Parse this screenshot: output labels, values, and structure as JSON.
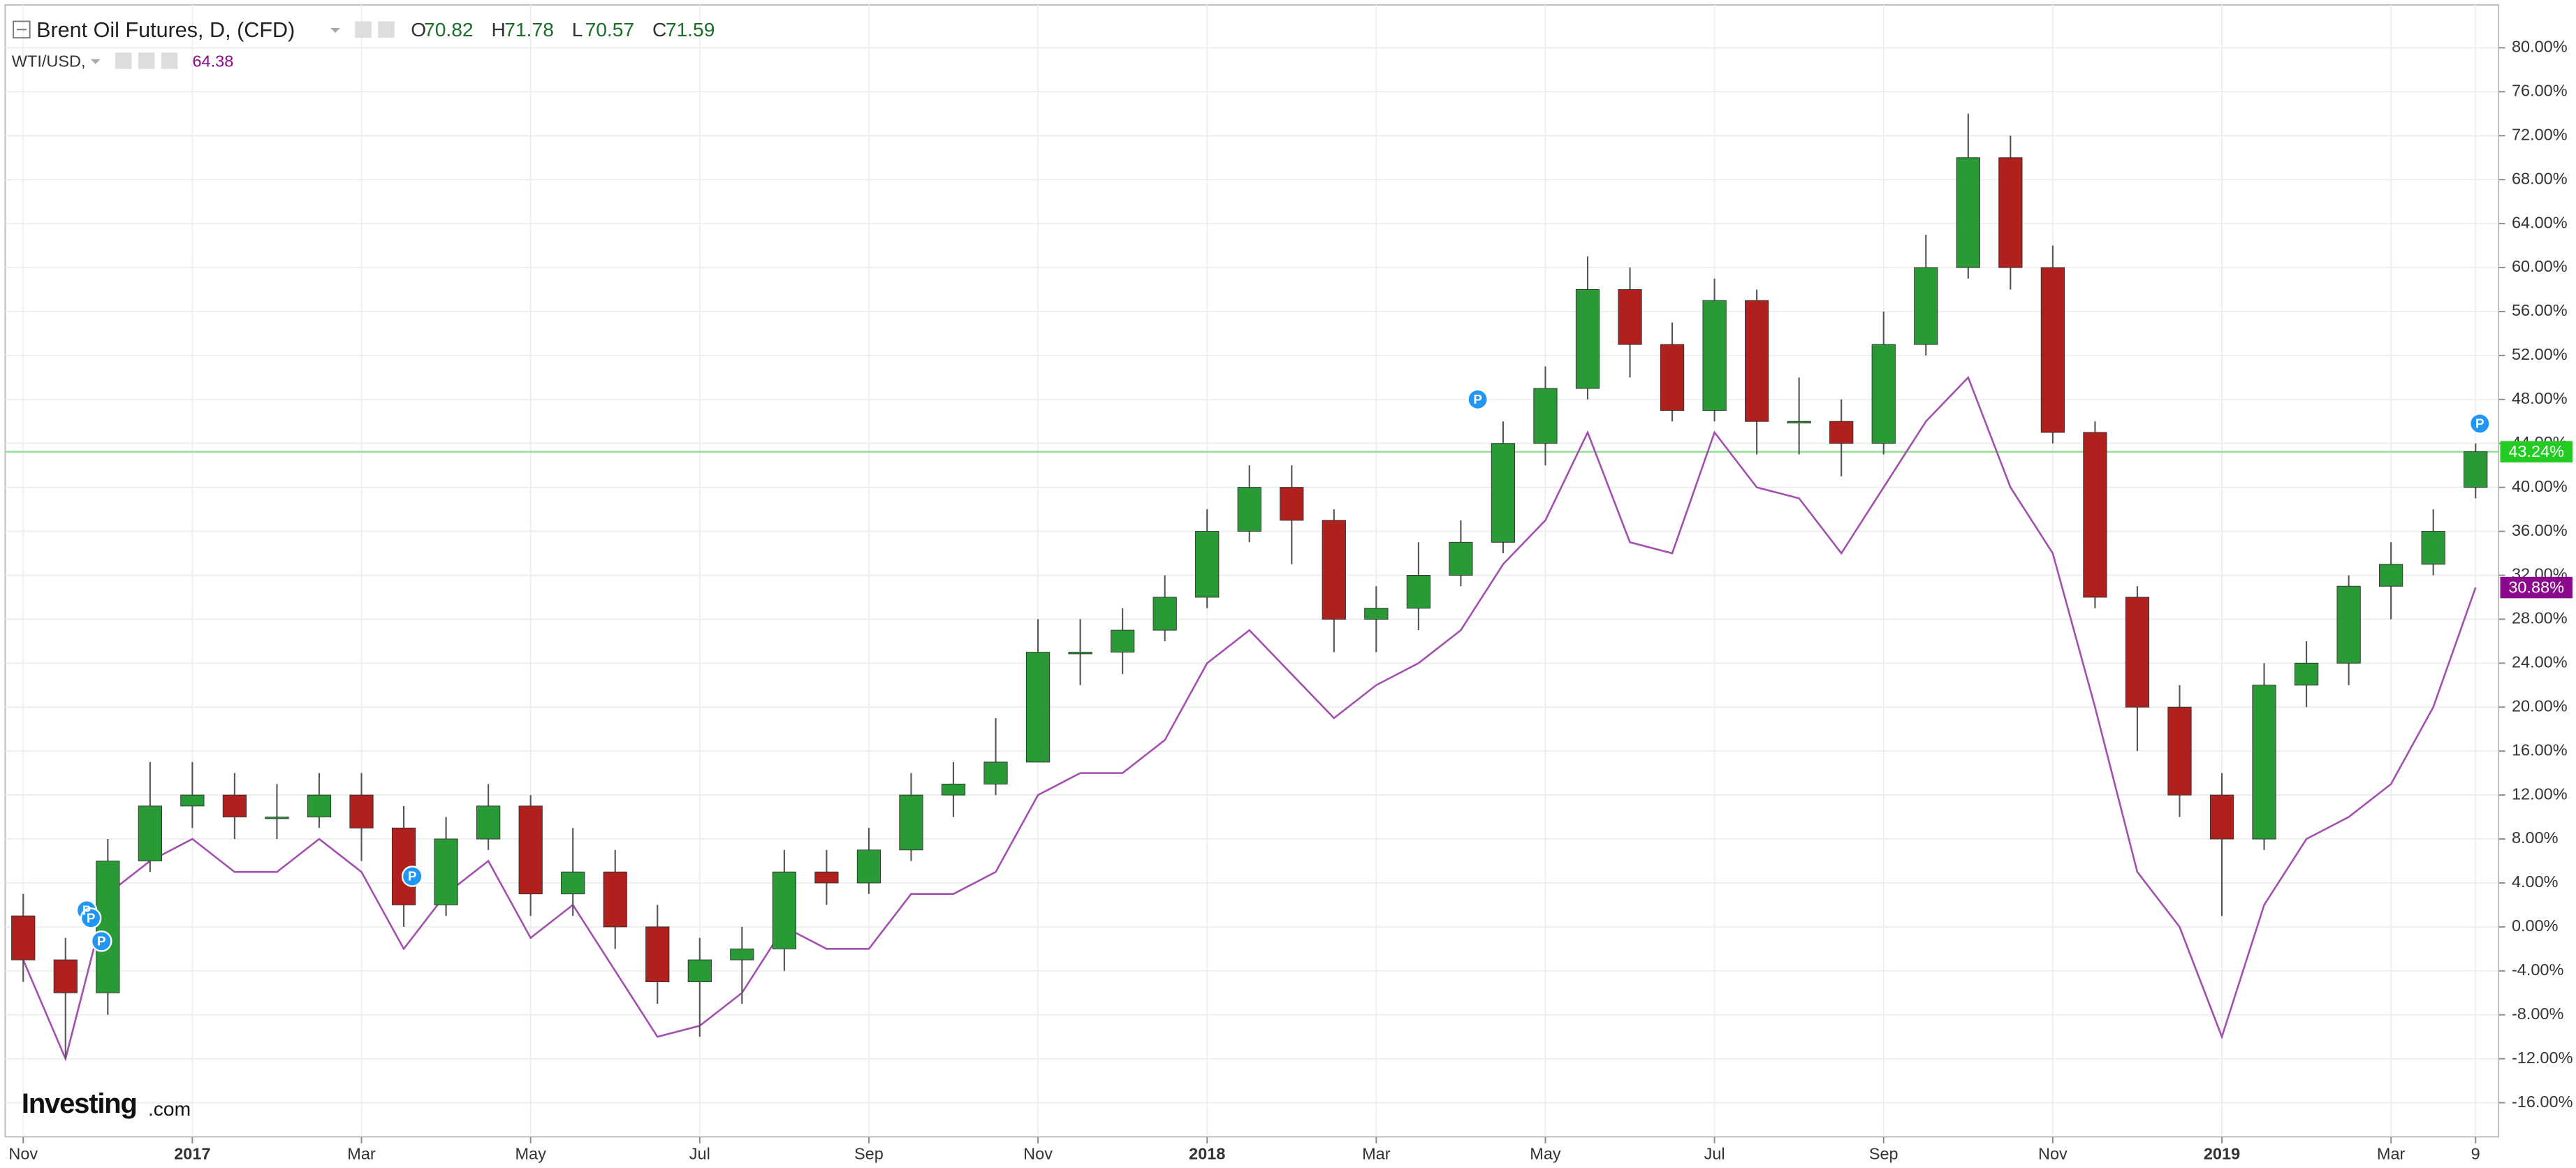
{
  "chart_data": {
    "type": "candlestick",
    "title": "Brent Oil Futures, D, (CFD)",
    "ohlc_header": [
      {
        "label": "O",
        "value": 70.82
      },
      {
        "label": "H",
        "value": 71.78
      },
      {
        "label": "L",
        "value": 70.57
      },
      {
        "label": "C",
        "value": 71.59
      }
    ],
    "logo": [
      "Investing",
      ".com"
    ],
    "categories": [
      "Nov",
      null,
      null,
      null,
      "2017",
      null,
      null,
      null,
      "Mar",
      null,
      null,
      null,
      "May",
      null,
      null,
      null,
      "Jul",
      null,
      null,
      null,
      "Sep",
      null,
      null,
      null,
      "Nov",
      null,
      null,
      null,
      "2018",
      null,
      null,
      null,
      "Mar",
      null,
      null,
      null,
      "May",
      null,
      null,
      null,
      "Jul",
      null,
      null,
      null,
      "Sep",
      null,
      null,
      null,
      "Nov",
      null,
      null,
      null,
      "2019",
      null,
      null,
      null,
      "Mar",
      null,
      "9"
    ],
    "up_color": "#2a9a36",
    "down_color": "#b0201c",
    "open": [
      1,
      -3,
      -6,
      6,
      11,
      12,
      10,
      10,
      12,
      9,
      2,
      8,
      11,
      3,
      5,
      0,
      -5,
      -3,
      -2,
      5,
      4,
      7,
      12,
      13,
      15,
      25,
      25,
      27,
      30,
      36,
      40,
      37,
      28,
      29,
      32,
      35,
      44,
      49,
      58,
      53,
      47,
      57,
      46,
      46,
      44,
      53,
      60,
      70,
      60,
      45,
      30,
      20,
      12,
      8,
      22,
      24,
      31,
      33,
      40
    ],
    "high": [
      3,
      -1,
      8,
      15,
      15,
      14,
      13,
      14,
      14,
      11,
      10,
      13,
      12,
      9,
      7,
      2,
      -1,
      0,
      7,
      7,
      9,
      14,
      15,
      19,
      28,
      28,
      29,
      32,
      38,
      42,
      42,
      38,
      31,
      35,
      37,
      46,
      51,
      61,
      60,
      55,
      59,
      58,
      50,
      48,
      56,
      63,
      74,
      72,
      62,
      46,
      31,
      22,
      14,
      24,
      26,
      32,
      35,
      38,
      44
    ],
    "low": [
      -5,
      -12,
      -8,
      5,
      9,
      8,
      8,
      9,
      6,
      0,
      1,
      7,
      1,
      1,
      -2,
      -7,
      -10,
      -7,
      -4,
      2,
      3,
      6,
      10,
      12,
      15,
      22,
      23,
      26,
      29,
      35,
      33,
      25,
      25,
      27,
      31,
      34,
      42,
      48,
      50,
      46,
      46,
      43,
      43,
      41,
      43,
      52,
      59,
      58,
      44,
      29,
      16,
      10,
      1,
      7,
      20,
      22,
      28,
      32,
      39
    ],
    "close": [
      -3,
      -6,
      6,
      11,
      12,
      10,
      10,
      12,
      9,
      2,
      8,
      11,
      3,
      5,
      0,
      -5,
      -3,
      -2,
      5,
      4,
      7,
      12,
      13,
      15,
      25,
      25,
      27,
      30,
      36,
      40,
      37,
      28,
      29,
      32,
      35,
      44,
      49,
      58,
      53,
      47,
      57,
      46,
      46,
      44,
      53,
      60,
      70,
      60,
      45,
      30,
      20,
      12,
      8,
      22,
      24,
      31,
      33,
      36,
      43.24
    ],
    "last_value_label": "43.24%",
    "last_value_color": "#22cc22",
    "comparison": {
      "name": "WTI/USD,",
      "value": 64.38,
      "color": "#a34fb0",
      "label_color": "#8b0a8b",
      "values": [
        -3,
        -12,
        3,
        6,
        8,
        5,
        5,
        8,
        5,
        -2,
        3,
        6,
        -1,
        2,
        -4,
        -10,
        -9,
        -6,
        0,
        -2,
        -2,
        3,
        3,
        5,
        12,
        14,
        14,
        17,
        24,
        27,
        23,
        19,
        22,
        24,
        27,
        33,
        37,
        45,
        35,
        34,
        45,
        40,
        39,
        34,
        40,
        46,
        50,
        40,
        34,
        20,
        5,
        0,
        -10,
        2,
        8,
        10,
        13,
        20,
        30.88
      ],
      "last_value_label": "30.88%"
    },
    "event_markers": [
      {
        "x": 1.5,
        "y": 1.5,
        "label": "P"
      },
      {
        "x": 1.6,
        "y": 0.8,
        "label": "P"
      },
      {
        "x": 1.85,
        "y": -1.3,
        "label": "P"
      },
      {
        "x": 9.2,
        "y": 4.6,
        "label": "P"
      },
      {
        "x": 34.4,
        "y": 48,
        "label": "P"
      },
      {
        "x": 58.1,
        "y": 45.8,
        "label": "P"
      }
    ],
    "ylim": [
      -19.1,
      83.9
    ],
    "yticks": [
      {
        "value": 80,
        "label": "80.00%"
      },
      {
        "value": 76,
        "label": "76.00%"
      },
      {
        "value": 72,
        "label": "72.00%"
      },
      {
        "value": 68,
        "label": "68.00%"
      },
      {
        "value": 64,
        "label": "64.00%"
      },
      {
        "value": 60,
        "label": "60.00%"
      },
      {
        "value": 56,
        "label": "56.00%"
      },
      {
        "value": 52,
        "label": "52.00%"
      },
      {
        "value": 48,
        "label": "48.00%"
      },
      {
        "value": 44,
        "label": "44.00%"
      },
      {
        "value": 40,
        "label": "40.00%"
      },
      {
        "value": 36,
        "label": "36.00%"
      },
      {
        "value": 32,
        "label": "32.00%"
      },
      {
        "value": 28,
        "label": "28.00%"
      },
      {
        "value": 24,
        "label": "24.00%"
      },
      {
        "value": 20,
        "label": "20.00%"
      },
      {
        "value": 16,
        "label": "16.00%"
      },
      {
        "value": 12,
        "label": "12.00%"
      },
      {
        "value": 8,
        "label": "8.00%"
      },
      {
        "value": 4,
        "label": "4.00%"
      },
      {
        "value": 0,
        "label": "0.00%"
      },
      {
        "value": -4,
        "label": "-4.00%"
      },
      {
        "value": -8,
        "label": "-8.00%"
      },
      {
        "value": -12,
        "label": "-12.00%"
      },
      {
        "value": -16,
        "label": "-16.00%"
      }
    ],
    "grid": true
  }
}
